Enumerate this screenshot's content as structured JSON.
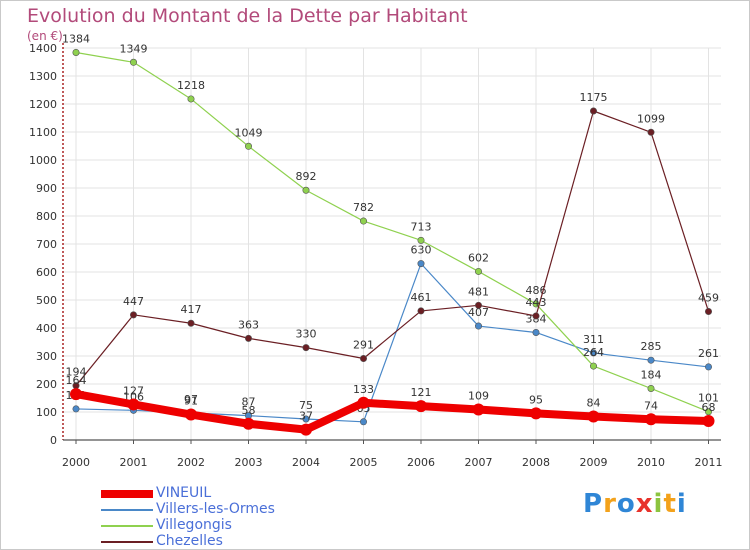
{
  "title": "Evolution du Montant de la Dette par Habitant",
  "unit": "(en €)",
  "logo": "Proxiti",
  "colors": {
    "title": "#b24a7a",
    "axis": "#aa2222",
    "grid": "#e3e3e3",
    "legend_text": "#4a6fd8"
  },
  "chart_data": {
    "type": "line",
    "title": "Evolution du Montant de la Dette par Habitant",
    "ylabel": "(en €)",
    "xlabel": "",
    "categories": [
      "2000",
      "2001",
      "2002",
      "2003",
      "2004",
      "2005",
      "2006",
      "2007",
      "2008",
      "2009",
      "2010",
      "2011"
    ],
    "ylim": [
      0,
      1400
    ],
    "yticks": [
      0,
      100,
      200,
      300,
      400,
      500,
      600,
      700,
      800,
      900,
      1000,
      1100,
      1200,
      1300,
      1400
    ],
    "grid": true,
    "legend": "bottom-left",
    "series": [
      {
        "name": "Villers-les-Ormes",
        "color": "#4a88c8",
        "values": [
          111,
          106,
          97,
          87,
          75,
          65,
          630,
          407,
          384,
          311,
          285,
          261
        ]
      },
      {
        "name": "Villegongis",
        "color": "#8fd14f",
        "values": [
          1384,
          1349,
          1218,
          1049,
          892,
          782,
          713,
          602,
          486,
          264,
          184,
          101
        ]
      },
      {
        "name": "Chezelles",
        "color": "#6b1f24",
        "values": [
          194,
          447,
          417,
          363,
          330,
          291,
          461,
          481,
          443,
          1175,
          1099,
          459
        ]
      },
      {
        "name": "VINEUIL",
        "color": "#ee0000",
        "values": [
          164,
          127,
          91,
          58,
          37,
          133,
          121,
          109,
          95,
          84,
          74,
          68
        ]
      }
    ]
  }
}
